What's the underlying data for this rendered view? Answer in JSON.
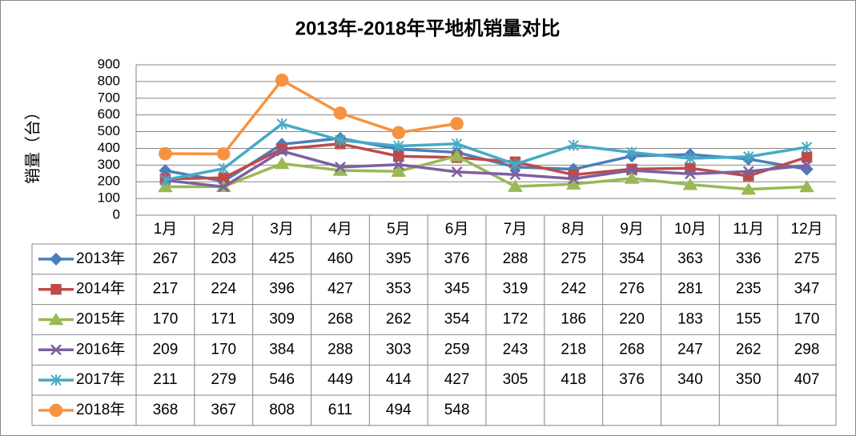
{
  "chart_data": {
    "type": "line",
    "title": "2013年-2018年平地机销量对比",
    "y_label": "销量（台）",
    "categories": [
      "1月",
      "2月",
      "3月",
      "4月",
      "5月",
      "6月",
      "7月",
      "8月",
      "9月",
      "10月",
      "11月",
      "12月"
    ],
    "series": [
      {
        "name": "2013年",
        "color": "#4a7ebb",
        "marker": "diamond",
        "values": [
          267,
          203,
          425,
          460,
          395,
          376,
          288,
          275,
          354,
          363,
          336,
          275
        ]
      },
      {
        "name": "2014年",
        "color": "#be4b48",
        "marker": "square",
        "values": [
          217,
          224,
          396,
          427,
          353,
          345,
          319,
          242,
          276,
          281,
          235,
          347
        ]
      },
      {
        "name": "2015年",
        "color": "#98b954",
        "marker": "triangle",
        "values": [
          170,
          171,
          309,
          268,
          262,
          354,
          172,
          186,
          220,
          183,
          155,
          170
        ]
      },
      {
        "name": "2016年",
        "color": "#7d60a0",
        "marker": "x",
        "values": [
          209,
          170,
          384,
          288,
          303,
          259,
          243,
          218,
          268,
          247,
          262,
          298
        ]
      },
      {
        "name": "2017年",
        "color": "#46aac5",
        "marker": "star",
        "values": [
          211,
          279,
          546,
          449,
          414,
          427,
          305,
          418,
          376,
          340,
          350,
          407
        ]
      },
      {
        "name": "2018年",
        "color": "#f69240",
        "marker": "circle",
        "values": [
          368,
          367,
          808,
          611,
          494,
          548,
          null,
          null,
          null,
          null,
          null,
          null
        ]
      }
    ],
    "ylim": [
      0,
      900
    ],
    "yticks": [
      0,
      100,
      200,
      300,
      400,
      500,
      600,
      700,
      800,
      900
    ],
    "grid": true,
    "data_table": true
  }
}
